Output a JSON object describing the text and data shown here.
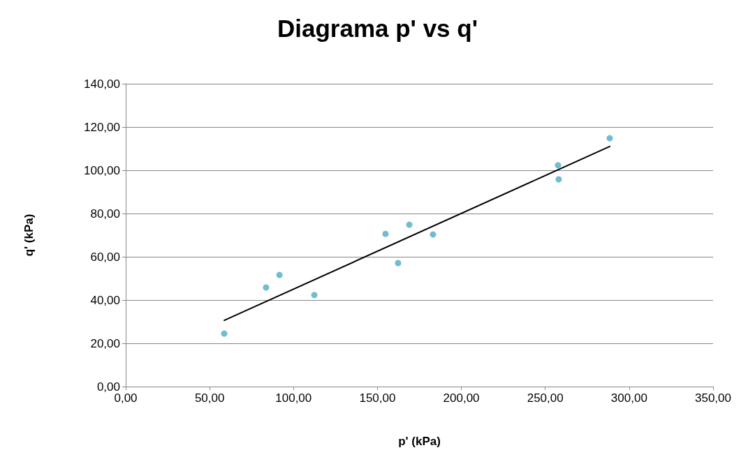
{
  "chart_data": {
    "type": "scatter",
    "title": "Diagrama p' vs q'",
    "xlabel": "p' (kPa)",
    "ylabel": "q' (kPa)",
    "series": [
      {
        "color": "#4bacc6",
        "marker": "circle",
        "x": [
          58.7,
          83.6,
          91.6,
          112.4,
          154.8,
          162.3,
          169.0,
          183.1,
          257.6,
          258.0,
          288.4
        ],
        "values": [
          24.5,
          45.8,
          51.6,
          42.3,
          70.6,
          57.1,
          74.8,
          70.3,
          102.3,
          95.8,
          114.8
        ]
      },
      {
        "type": "line",
        "color": "#000000",
        "marker": "none",
        "line_style": "solid",
        "x": [
          58.7,
          288.4
        ],
        "values": [
          30.6,
          111.0
        ]
      }
    ],
    "xlim": [
      0,
      350
    ],
    "xticks": [
      {
        "value": 0,
        "label": "0,00"
      },
      {
        "value": 50,
        "label": "50,00"
      },
      {
        "value": 100,
        "label": "100,00"
      },
      {
        "value": 150,
        "label": "150,00"
      },
      {
        "value": 200,
        "label": "200,00"
      },
      {
        "value": 250,
        "label": "250,00"
      },
      {
        "value": 300,
        "label": "300,00"
      },
      {
        "value": 350,
        "label": "350,00"
      }
    ],
    "ylim": [
      0,
      140
    ],
    "yticks": [
      {
        "value": 0,
        "label": "0,00"
      },
      {
        "value": 20,
        "label": "20,00"
      },
      {
        "value": 40,
        "label": "40,00"
      },
      {
        "value": 60,
        "label": "60,00"
      },
      {
        "value": 80,
        "label": "80,00"
      },
      {
        "value": 100,
        "label": "100,00"
      },
      {
        "value": 120,
        "label": "120,00"
      },
      {
        "value": 140,
        "label": "140,00"
      }
    ],
    "grid": "y"
  }
}
